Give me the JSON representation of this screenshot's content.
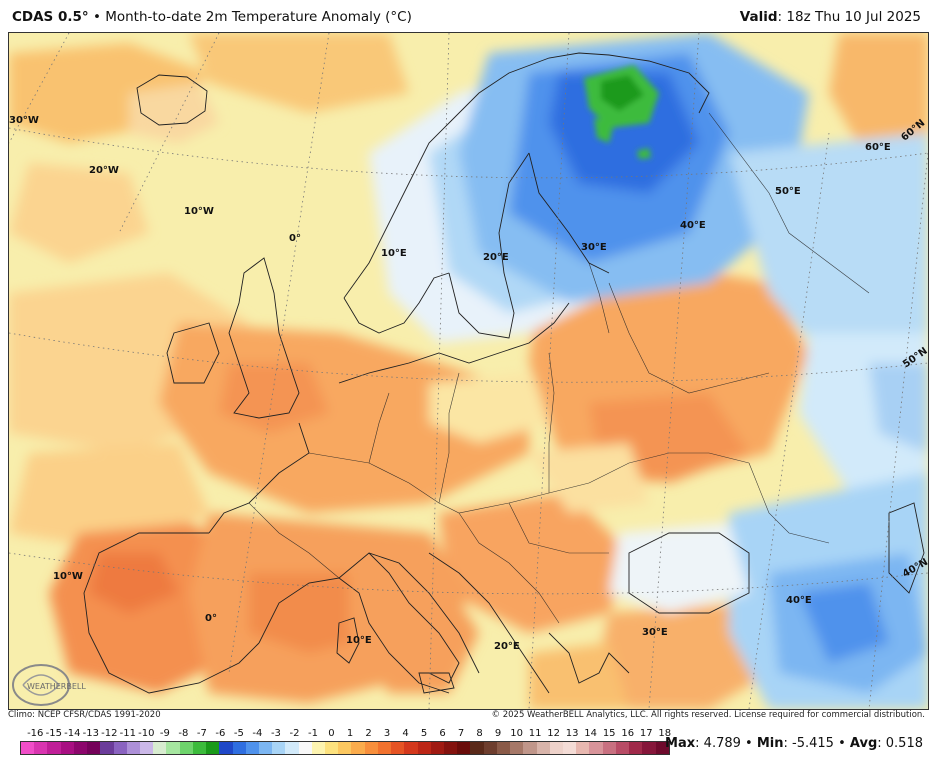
{
  "header": {
    "product": "CDAS 0.5°",
    "separator": "•",
    "description": "Month-to-date 2m Temperature Anomaly (°C)",
    "valid_label": "Valid",
    "valid_time": ": 18z Thu 10 Jul 2025"
  },
  "map": {
    "graticule_labels": {
      "lon_30w": "30°W",
      "lon_20w": "20°W",
      "lon_10w_north": "10°W",
      "lon_0_north": "0°",
      "lon_10e_north": "10°E",
      "lon_20e_north": "20°E",
      "lon_30e_north": "30°E",
      "lon_40e_north": "40°E",
      "lon_50e": "50°E",
      "lon_60e": "60°E",
      "lat_60n": "60°N",
      "lat_50n": "50°N",
      "lat_40n": "40°N",
      "lon_10w_south": "10°W",
      "lon_0_south": "0°",
      "lon_10e_south": "10°E",
      "lon_20e_south": "20°E",
      "lon_30e_south": "30°E",
      "lon_40e_south": "40°E"
    },
    "logo_text": "WEATHERBELL"
  },
  "credits": {
    "climo": "Climo: NCEP CFSR/CDAS 1991-2020",
    "copyright": "© 2025 WeatherBELL Analytics, LLC. All rights reserved. License required for commercial distribution."
  },
  "colorbar": {
    "ticks": [
      "-16",
      "-15",
      "-14",
      "-13",
      "-12",
      "-11",
      "-10",
      "-9",
      "-8",
      "-7",
      "-6",
      "-5",
      "-4",
      "-3",
      "-2",
      "-1",
      "0",
      "1",
      "2",
      "3",
      "4",
      "5",
      "6",
      "7",
      "8",
      "9",
      "10",
      "11",
      "12",
      "13",
      "14",
      "15",
      "16",
      "17",
      "18"
    ],
    "colors": [
      "#f04ec8",
      "#d935b0",
      "#c01f98",
      "#a80f82",
      "#8c066c",
      "#75025a",
      "#6b3c9a",
      "#8a63c0",
      "#ad90d8",
      "#cbb8e8",
      "#d8ecd0",
      "#a6e6a0",
      "#6ed46c",
      "#3cbb3c",
      "#1a9a1a",
      "#1f48c8",
      "#2f6ee0",
      "#4f92ec",
      "#7cb6f2",
      "#a8d4f6",
      "#d2eafa",
      "#f8f8f8",
      "#fdf4b0",
      "#fde27e",
      "#fcc860",
      "#fbac4c",
      "#f88f3c",
      "#f2722e",
      "#e65424",
      "#d4381c",
      "#bc2616",
      "#a01a12",
      "#84120e",
      "#6a0c0a",
      "#5a2a1a",
      "#6e3e2e",
      "#8a5a48",
      "#a67868",
      "#c0968a",
      "#d8b4aa",
      "#eed2ca",
      "#f4dcd6",
      "#e8b8b0",
      "#d8949a",
      "#c87080",
      "#b84c66",
      "#a02a4a",
      "#86163a",
      "#6e0a2c"
    ]
  },
  "stats": {
    "max_label": "Max",
    "max_value": ": 4.789",
    "min_label": "Min",
    "min_value": ": -5.415",
    "avg_label": "Avg",
    "avg_value": ": 0.518",
    "sep": "•"
  }
}
